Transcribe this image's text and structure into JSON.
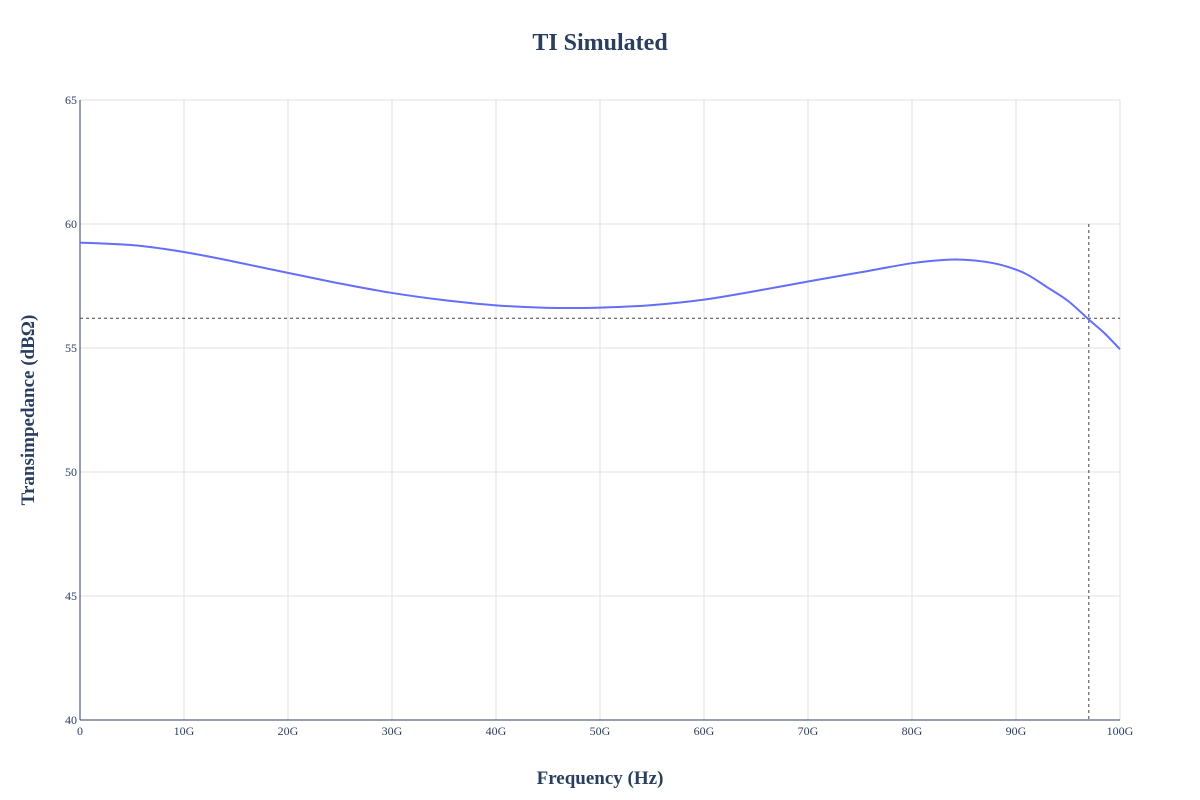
{
  "chart_data": {
    "type": "line",
    "title": "TI Simulated",
    "xlabel": "Frequency (Hz)",
    "ylabel": "Transimpedance (dBΩ)",
    "xlim": [
      0,
      100000000000
    ],
    "ylim": [
      40,
      65
    ],
    "grid": true,
    "x_ticks": [
      {
        "value": 0,
        "label": "0"
      },
      {
        "value": 10000000000,
        "label": "10G"
      },
      {
        "value": 20000000000,
        "label": "20G"
      },
      {
        "value": 30000000000,
        "label": "30G"
      },
      {
        "value": 40000000000,
        "label": "40G"
      },
      {
        "value": 50000000000,
        "label": "50G"
      },
      {
        "value": 60000000000,
        "label": "60G"
      },
      {
        "value": 70000000000,
        "label": "70G"
      },
      {
        "value": 80000000000,
        "label": "80G"
      },
      {
        "value": 90000000000,
        "label": "90G"
      },
      {
        "value": 100000000000,
        "label": "100G"
      }
    ],
    "y_ticks": [
      {
        "value": 40,
        "label": "40"
      },
      {
        "value": 45,
        "label": "45"
      },
      {
        "value": 50,
        "label": "50"
      },
      {
        "value": 55,
        "label": "55"
      },
      {
        "value": 60,
        "label": "60"
      },
      {
        "value": 65,
        "label": "65"
      }
    ],
    "series": [
      {
        "color": "#636efa",
        "x": [
          0,
          5000000000,
          8000000000,
          12000000000,
          16000000000,
          20000000000,
          25000000000,
          30000000000,
          35000000000,
          40000000000,
          45000000000,
          50000000000,
          55000000000,
          60000000000,
          65000000000,
          70000000000,
          75000000000,
          80000000000,
          83000000000,
          85000000000,
          87000000000,
          89000000000,
          91000000000,
          93000000000,
          95000000000,
          97000000000,
          98500000000,
          100000000000
        ],
        "y": [
          59.25,
          59.15,
          59.0,
          58.72,
          58.38,
          58.03,
          57.6,
          57.22,
          56.93,
          56.72,
          56.62,
          56.63,
          56.73,
          56.95,
          57.3,
          57.68,
          58.05,
          58.42,
          58.55,
          58.56,
          58.48,
          58.3,
          57.98,
          57.45,
          56.9,
          56.15,
          55.6,
          54.95
        ]
      }
    ],
    "reference_lines": {
      "horizontal_y": 56.2,
      "vertical_x": 97000000000
    }
  }
}
